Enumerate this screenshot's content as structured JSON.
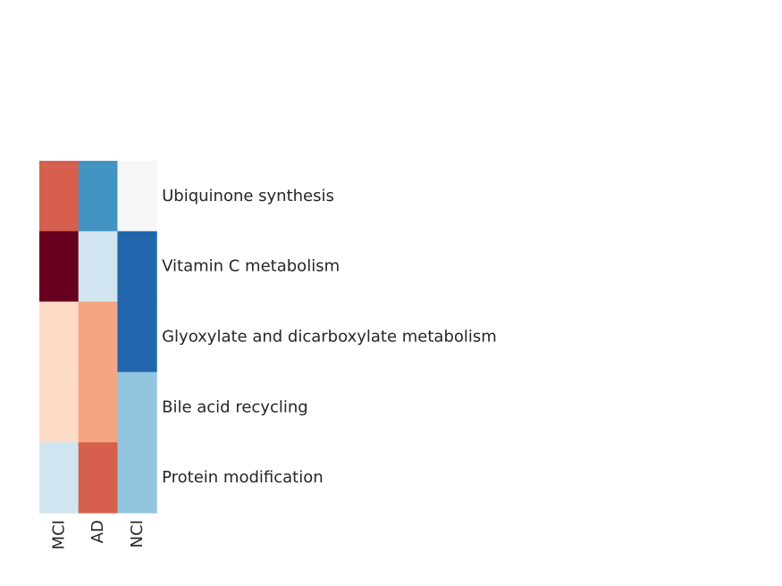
{
  "chart_data": {
    "type": "heatmap",
    "title": "",
    "xlabel": "",
    "ylabel": "",
    "columns": [
      "MCI",
      "AD",
      "NCI"
    ],
    "rows": [
      "Ubiquinone synthesis",
      "Vitamin C metabolism",
      "Glyoxylate and dicarboxylate metabolism",
      "Bile acid recycling",
      "Protein modification"
    ],
    "colormap": "RdBu_r (red = high, blue = low)",
    "values": [
      [
        0.7,
        -0.7,
        0.0
      ],
      [
        1.0,
        -0.2,
        -0.85
      ],
      [
        0.18,
        0.38,
        -0.85
      ],
      [
        0.18,
        0.38,
        -0.4
      ],
      [
        -0.2,
        0.7,
        -0.4
      ]
    ],
    "cell_colors": [
      [
        "#d6604d",
        "#4393c3",
        "#f7f7f7"
      ],
      [
        "#67001f",
        "#d1e5f0",
        "#2166ac"
      ],
      [
        "#fddbc7",
        "#f4a582",
        "#2166ac"
      ],
      [
        "#fddbc7",
        "#f4a582",
        "#92c5de"
      ],
      [
        "#d1e5f0",
        "#d6604d",
        "#92c5de"
      ]
    ],
    "colorbar": false
  }
}
